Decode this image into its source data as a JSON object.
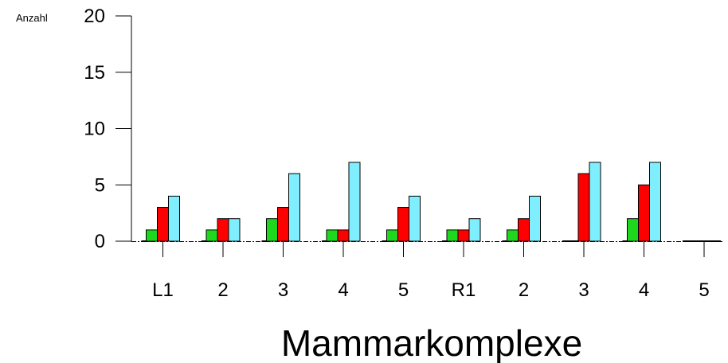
{
  "chart_data": {
    "type": "bar",
    "title": "",
    "xlabel": "Mammarkomplexe",
    "ylabel": "Anzahl",
    "ylim": [
      0,
      20
    ],
    "yticks": [
      0,
      5,
      10,
      15,
      20
    ],
    "grid": false,
    "legend": "none",
    "categories": [
      "L1",
      "2",
      "3",
      "4",
      "5",
      "R1",
      "2",
      "3",
      "4",
      "5"
    ],
    "series": [
      {
        "color": "#1ed81e",
        "values": [
          1,
          1,
          2,
          1,
          1,
          1,
          1,
          0,
          2,
          0
        ]
      },
      {
        "color": "#ff0000",
        "values": [
          3,
          2,
          3,
          1,
          3,
          1,
          2,
          6,
          5,
          0
        ]
      },
      {
        "color": "#7fefff",
        "values": [
          4,
          2,
          6,
          7,
          4,
          2,
          4,
          7,
          7,
          0
        ]
      }
    ]
  }
}
